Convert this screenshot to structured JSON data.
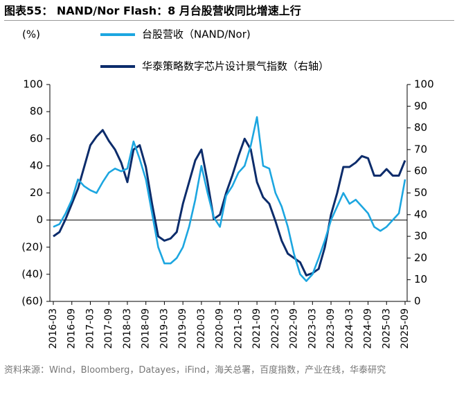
{
  "chart_data": {
    "type": "line",
    "title": "图表55： NAND/Nor Flash：8 月台股营收同比增速上行",
    "y_unit": "(%)",
    "source": "资料来源：Wind，Bloomberg，Datayes，iFind，海关总署，百度指数，产业在线，华泰研究",
    "categories": [
      "2016-03",
      null,
      null,
      "2016-09",
      null,
      null,
      "2017-03",
      null,
      null,
      "2017-09",
      null,
      null,
      "2018-03",
      null,
      null,
      "2018-09",
      null,
      null,
      "2019-03",
      null,
      null,
      "2019-09",
      null,
      null,
      "2020-03",
      null,
      null,
      "2020-09",
      null,
      null,
      "2021-03",
      null,
      null,
      "2021-09",
      null,
      null,
      "2022-03",
      null,
      null,
      "2022-09",
      null,
      null,
      "2023-03",
      null,
      null,
      "2023-09",
      null,
      null,
      "2024-03",
      null,
      null,
      "2024-09",
      null,
      null,
      "2025-03",
      null,
      null,
      "2025-09"
    ],
    "series": [
      {
        "name": "台股营收（NAND/Nor)",
        "color": "#1ca6e0",
        "values": [
          -5,
          -3,
          5,
          15,
          30,
          25,
          22,
          20,
          28,
          35,
          38,
          36,
          38,
          58,
          45,
          30,
          5,
          -20,
          -32,
          -32,
          -28,
          -20,
          -5,
          15,
          40,
          20,
          2,
          -5,
          18,
          25,
          35,
          40,
          55,
          76,
          40,
          38,
          20,
          10,
          -5,
          -25,
          -40,
          -45,
          -40,
          -28,
          -15,
          0,
          10,
          20,
          12,
          15,
          10,
          5,
          -5,
          -8,
          -5,
          0,
          5,
          30
        ]
      },
      {
        "name": "华泰策略数字芯片设计景气指数（右轴）",
        "color": "#0c2c6b",
        "axis": "y2",
        "values": [
          30,
          32,
          38,
          45,
          52,
          62,
          72,
          76,
          79,
          74,
          70,
          64,
          55,
          70,
          72,
          62,
          45,
          30,
          28,
          29,
          32,
          45,
          55,
          65,
          70,
          55,
          38,
          40,
          50,
          58,
          67,
          75,
          70,
          55,
          48,
          45,
          37,
          28,
          22,
          20,
          18,
          12,
          13,
          15,
          25,
          40,
          50,
          62,
          62,
          64,
          67,
          66,
          58,
          58,
          61,
          58,
          58,
          65
        ]
      }
    ],
    "ylim": [
      -60,
      100
    ],
    "yticks": [
      {
        "value": -60,
        "label": "(60)"
      },
      {
        "value": -40,
        "label": "(40)"
      },
      {
        "value": -20,
        "label": "(20)"
      },
      0,
      20,
      40,
      60,
      80,
      100
    ],
    "y2lim": [
      0,
      100
    ],
    "y2ticks": [
      0,
      10,
      20,
      30,
      40,
      50,
      60,
      70,
      80,
      90,
      100
    ],
    "grid": false
  }
}
